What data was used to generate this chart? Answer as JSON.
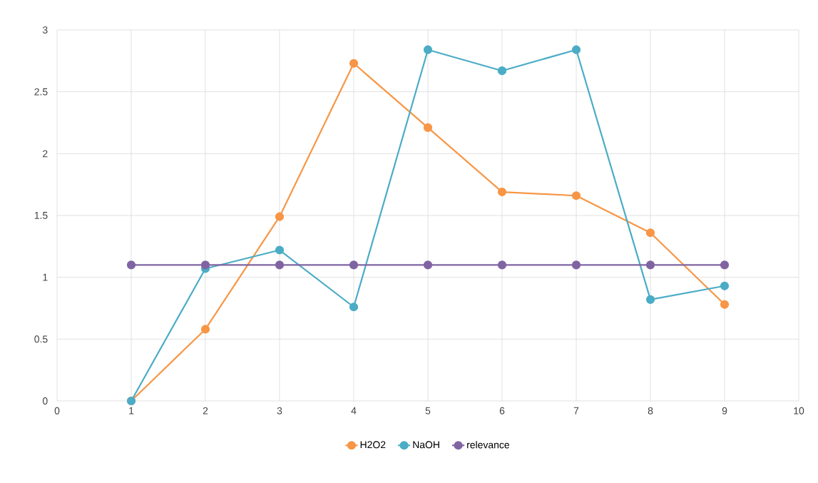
{
  "chart_data": {
    "type": "line",
    "xlim": [
      0,
      10
    ],
    "xticks": [
      0,
      1,
      2,
      3,
      4,
      5,
      6,
      7,
      8,
      9,
      10
    ],
    "ylim": [
      0,
      3
    ],
    "yticks": [
      0,
      0.5,
      1,
      1.5,
      2,
      2.5,
      3
    ],
    "x": [
      1,
      2,
      3,
      4,
      5,
      6,
      7,
      8,
      9
    ],
    "series": [
      {
        "name": "H2O2",
        "color": "#f79646",
        "values": [
          0,
          0.58,
          1.49,
          2.73,
          2.21,
          1.69,
          1.66,
          1.36,
          0.78
        ]
      },
      {
        "name": "NaOH",
        "color": "#4bacc6",
        "values": [
          0,
          1.07,
          1.22,
          0.76,
          2.84,
          2.67,
          2.84,
          0.82,
          0.93
        ]
      },
      {
        "name": "relevance",
        "color": "#8064a2",
        "values": [
          1.1,
          1.1,
          1.1,
          1.1,
          1.1,
          1.1,
          1.1,
          1.1,
          1.1
        ]
      }
    ],
    "grid": true,
    "legend": "bottom",
    "marker": "circle",
    "line_style": "solid"
  }
}
